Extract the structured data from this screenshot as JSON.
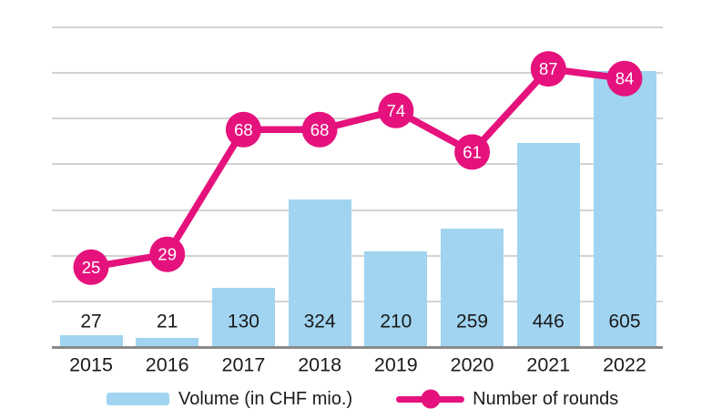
{
  "chart_data": {
    "type": "combo-bar-line",
    "categories": [
      "2015",
      "2016",
      "2017",
      "2018",
      "2019",
      "2020",
      "2021",
      "2022"
    ],
    "series": [
      {
        "name": "Volume (in CHF mio.)",
        "type": "bar",
        "values": [
          27,
          21,
          130,
          324,
          210,
          259,
          446,
          605
        ],
        "axis_range": [
          0,
          700
        ]
      },
      {
        "name": "Number of rounds",
        "type": "line",
        "values": [
          25,
          29,
          68,
          68,
          74,
          61,
          87,
          84
        ],
        "axis_range": [
          0,
          100
        ]
      }
    ],
    "title": "",
    "xlabel": "",
    "ylabel": "",
    "gridlines": {
      "horizontal_count": 7,
      "visible": true
    },
    "axis_tick_labels_visible": false,
    "data_labels_visible": true,
    "legend_position": "bottom"
  },
  "legend": {
    "volume_label": "Volume (in CHF mio.)",
    "rounds_label": "Number of rounds"
  },
  "colors": {
    "bar": "#A0D4F1",
    "line": "#E5127D",
    "grid": "#D3D3D3",
    "axis": "#8A8A8A",
    "text": "#1A1A1A",
    "marker_text": "#FFFFFF"
  }
}
